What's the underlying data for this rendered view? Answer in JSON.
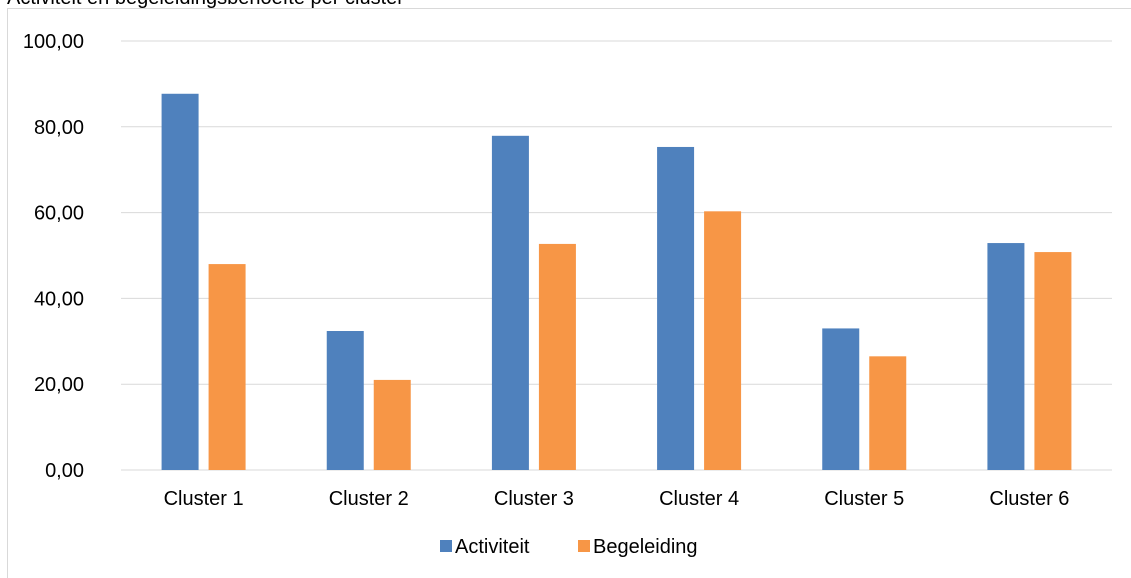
{
  "header": {
    "top_text": "Activiteit en begeleidingsbehoefte per cluster"
  },
  "chart_data": {
    "type": "bar",
    "categories": [
      "Cluster 1",
      "Cluster 2",
      "Cluster 3",
      "Cluster 4",
      "Cluster 5",
      "Cluster 6"
    ],
    "series": [
      {
        "name": "Activiteit",
        "color": "#4f81bd",
        "values": [
          87.7,
          32.4,
          77.9,
          75.3,
          33.0,
          52.9
        ]
      },
      {
        "name": "Begeleiding",
        "color": "#f79646",
        "values": [
          48.0,
          21.0,
          52.7,
          60.3,
          26.5,
          50.8
        ]
      }
    ],
    "ylim": [
      0,
      100
    ],
    "yticks": [
      0,
      20,
      40,
      60,
      80,
      100
    ],
    "ytick_labels": [
      "0,00",
      "20,00",
      "40,00",
      "60,00",
      "80,00",
      "100,00"
    ],
    "grid": true,
    "legend_position": "bottom",
    "gridline_color": "#d9d9d9"
  }
}
